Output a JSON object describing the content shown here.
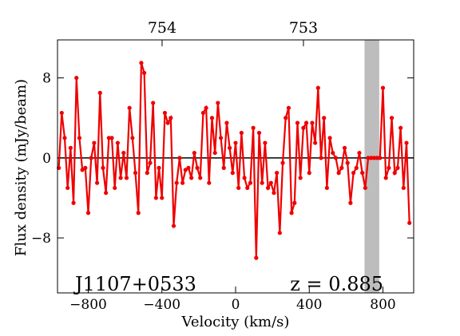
{
  "chart_data": {
    "type": "line",
    "annotations": [
      "J1107+0533",
      "z = 0.885"
    ],
    "xlabel": "Velocity (km/s)",
    "ylabel": "Flux density (mJy/beam)",
    "xlim": [
      -967,
      967
    ],
    "ylim": [
      -13.5,
      11.8
    ],
    "xticks": [
      {
        "value": -800,
        "label": "−800"
      },
      {
        "value": -400,
        "label": "−400"
      },
      0,
      400,
      800
    ],
    "yticks": [
      {
        "value": -8,
        "label": "−8"
      },
      0,
      8
    ],
    "x2lim": [
      754.74,
      752.22
    ],
    "x2ticks": [
      754,
      753
    ],
    "reference_line": 0,
    "shaded_span": [
      700,
      780
    ],
    "shade_color": "#bdbdbd",
    "x": [
      -960,
      -944,
      -928,
      -912,
      -896,
      -880,
      -864,
      -848,
      -832,
      -816,
      -800,
      -784,
      -768,
      -752,
      -736,
      -720,
      -704,
      -688,
      -672,
      -656,
      -640,
      -624,
      -608,
      -592,
      -576,
      -560,
      -544,
      -528,
      -512,
      -496,
      -480,
      -464,
      -448,
      -432,
      -416,
      -400,
      -384,
      -368,
      -352,
      -336,
      -320,
      -304,
      -288,
      -272,
      -256,
      -240,
      -224,
      -208,
      -192,
      -176,
      -160,
      -144,
      -128,
      -112,
      -96,
      -80,
      -64,
      -48,
      -32,
      -16,
      0,
      16,
      32,
      48,
      64,
      80,
      96,
      112,
      128,
      144,
      160,
      176,
      192,
      208,
      224,
      240,
      256,
      272,
      288,
      304,
      320,
      336,
      352,
      368,
      384,
      400,
      416,
      432,
      448,
      464,
      480,
      496,
      512,
      528,
      544,
      560,
      576,
      592,
      608,
      624,
      640,
      656,
      672,
      688,
      704,
      720,
      736,
      752,
      768,
      784,
      800,
      816,
      832,
      848,
      864,
      880,
      896,
      912,
      928,
      944
    ],
    "series": [
      {
        "name": "spectrum",
        "color": "#ee0000",
        "values": [
          -1,
          4.5,
          2,
          -3,
          1,
          -4.5,
          8,
          2,
          -1.2,
          -1,
          -5.5,
          0,
          1.5,
          -2.5,
          6.5,
          -1,
          -3.5,
          2,
          2,
          -3,
          1.5,
          -2,
          0.5,
          -2,
          5,
          2,
          -1.5,
          -5.5,
          9.5,
          8.5,
          -1.5,
          -0.5,
          5.5,
          -4,
          -1,
          -4,
          4.5,
          3.5,
          4,
          -6.8,
          -2.5,
          0,
          -2.5,
          -1.2,
          -1,
          -2,
          0.5,
          -1,
          -2,
          4.5,
          5,
          -2.5,
          4,
          0.5,
          5.5,
          2,
          -1,
          3.5,
          1,
          -1.5,
          1.5,
          -3,
          2.5,
          -2,
          -3,
          -2.5,
          3,
          -10,
          2.5,
          -2.5,
          1.5,
          -3,
          -2.5,
          -3.5,
          -1.5,
          -7.5,
          -0.5,
          4,
          5,
          -5.5,
          -4.5,
          3.5,
          -2,
          3,
          3.5,
          -1.5,
          3.5,
          1.5,
          7,
          0,
          4,
          -3,
          2,
          0.5,
          0,
          -1.5,
          -1,
          1,
          -0.5,
          -4.5,
          -1.5,
          -1,
          0.5,
          -1.5,
          -3,
          0,
          0,
          0,
          0,
          0,
          7,
          -2,
          -1,
          4,
          -1.5,
          -1,
          3,
          -3,
          1.5,
          -6.5
        ]
      }
    ]
  }
}
